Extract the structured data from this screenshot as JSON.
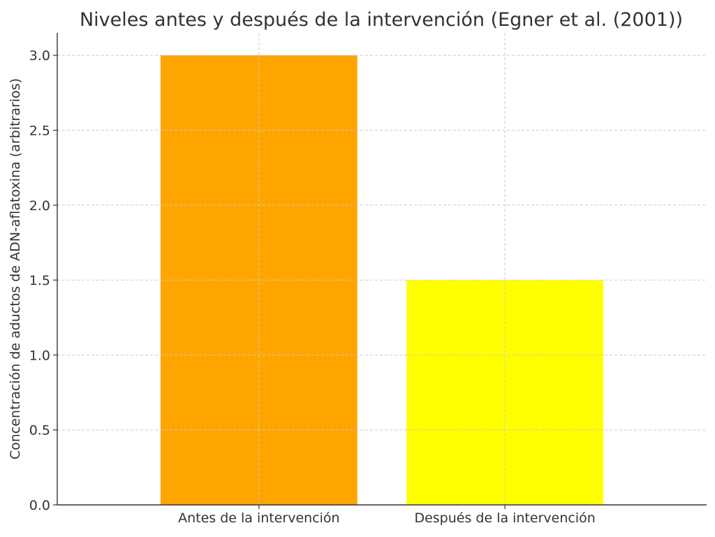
{
  "chart_data": {
    "type": "bar",
    "title": "Niveles antes y después de la intervención (Egner et al. (2001))",
    "xlabel": "",
    "ylabel": "Concentración de aductos de ADN-aflatoxina (arbitrarios)",
    "categories": [
      "Antes de la intervención",
      "Después de la intervención"
    ],
    "values": [
      3.0,
      1.5
    ],
    "bar_colors": [
      "#FFA500",
      "#FFFF00"
    ],
    "ylim": [
      0,
      3.15
    ],
    "yticks": [
      "0.0",
      "0.5",
      "1.0",
      "1.5",
      "2.0",
      "2.5",
      "3.0"
    ],
    "grid": true,
    "legend": "none"
  }
}
